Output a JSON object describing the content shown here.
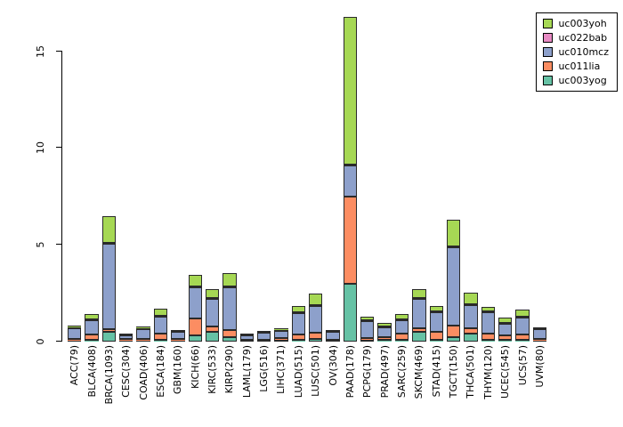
{
  "chart_data": {
    "type": "bar",
    "subtype": "stacked",
    "title": "",
    "xlabel": "",
    "ylabel": "",
    "yticks": [
      0,
      5,
      10,
      15
    ],
    "ylim": [
      0,
      17
    ],
    "grid": false,
    "legend_position": "top-right",
    "categories": [
      "ACC(79)",
      "BLCA(408)",
      "BRCA(1093)",
      "CESC(304)",
      "COAD(406)",
      "ESCA(184)",
      "GBM(160)",
      "KICH(66)",
      "KIRC(533)",
      "KIRP(290)",
      "LAML(179)",
      "LGG(516)",
      "LIHC(371)",
      "LUAD(515)",
      "LUSC(501)",
      "OV(304)",
      "PAAD(178)",
      "PCPG(179)",
      "PRAD(497)",
      "SARC(259)",
      "SKCM(469)",
      "STAD(415)",
      "TGCT(150)",
      "THCA(501)",
      "THYM(120)",
      "UCEC(545)",
      "UCS(57)",
      "UVM(80)"
    ],
    "series": [
      {
        "name": "uc003yog",
        "color": "#66C2A5",
        "values": [
          0.05,
          0.1,
          0.5,
          0.03,
          0.05,
          0.1,
          0.03,
          0.3,
          0.5,
          0.25,
          0.03,
          0.03,
          0.05,
          0.1,
          0.15,
          0.03,
          3.0,
          0.05,
          0.1,
          0.1,
          0.5,
          0.1,
          0.25,
          0.4,
          0.1,
          0.1,
          0.1,
          0.05
        ]
      },
      {
        "name": "uc011lia",
        "color": "#FC8D62",
        "values": [
          0.1,
          0.25,
          0.15,
          0.07,
          0.1,
          0.3,
          0.07,
          0.9,
          0.3,
          0.35,
          0.05,
          0.05,
          0.15,
          0.25,
          0.3,
          0.05,
          4.5,
          0.15,
          0.15,
          0.3,
          0.2,
          0.4,
          0.6,
          0.3,
          0.3,
          0.2,
          0.25,
          0.08
        ]
      },
      {
        "name": "uc010mcz",
        "color": "#8DA0CB",
        "values": [
          0.55,
          0.75,
          4.4,
          0.2,
          0.5,
          0.9,
          0.4,
          1.6,
          1.4,
          2.2,
          0.22,
          0.37,
          0.35,
          1.1,
          1.4,
          0.42,
          1.6,
          0.85,
          0.5,
          0.7,
          1.5,
          1.0,
          4.0,
          1.2,
          1.1,
          0.6,
          0.9,
          0.5
        ]
      },
      {
        "name": "uc022bab",
        "color": "#E78AC3",
        "values": [
          0.02,
          0.03,
          0.05,
          0.01,
          0.02,
          0.02,
          0.01,
          0.03,
          0.05,
          0.03,
          0.01,
          0.01,
          0.02,
          0.03,
          0.03,
          0.01,
          0.05,
          0.02,
          0.02,
          0.02,
          0.03,
          0.03,
          0.05,
          0.03,
          0.02,
          0.02,
          0.02,
          0.02
        ]
      },
      {
        "name": "uc003yoh",
        "color": "#A6D854",
        "values": [
          0.1,
          0.3,
          1.4,
          0.05,
          0.1,
          0.35,
          0.05,
          0.6,
          0.45,
          0.7,
          0.05,
          0.05,
          0.1,
          0.35,
          0.6,
          0.05,
          7.6,
          0.2,
          0.15,
          0.3,
          0.45,
          0.3,
          1.4,
          0.6,
          0.25,
          0.3,
          0.35,
          0.08
        ]
      }
    ],
    "legend_order": [
      "uc003yoh",
      "uc022bab",
      "uc010mcz",
      "uc011lia",
      "uc003yog"
    ]
  }
}
